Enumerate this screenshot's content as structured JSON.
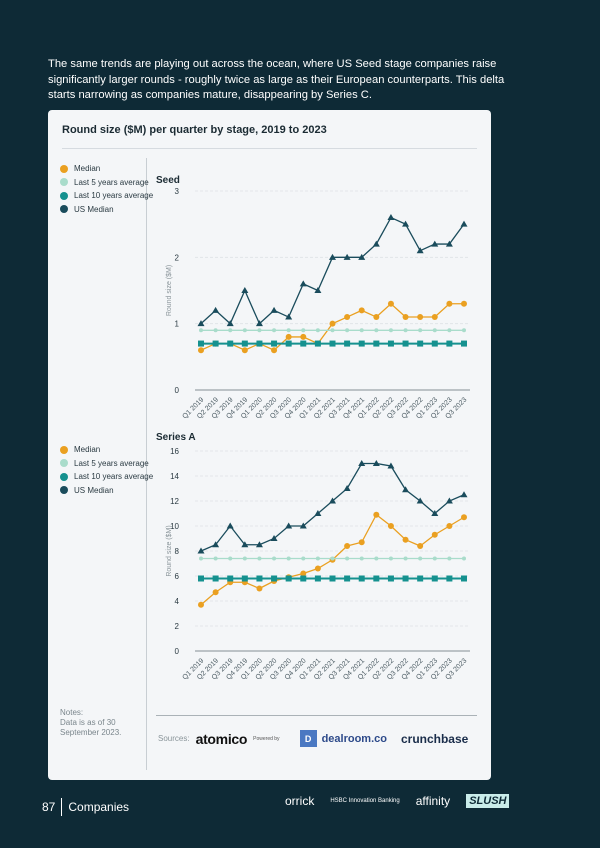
{
  "intro": "The same trends are playing out across the ocean, where US Seed stage companies raise significantly larger rounds - roughly twice as large as their European counterparts. This delta starts narrowing as companies mature, disappearing by Series C.",
  "card_title": "Round size ($M) per quarter by stage, 2019 to 2023",
  "legend": [
    "Median",
    "Last 5 years average",
    "Last 10 years average",
    "US Median"
  ],
  "colors": {
    "Median": "#eaa021",
    "Last 5 years average": "#a9dccb",
    "Last 10 years average": "#15918f",
    "US Median": "#1a4c5c"
  },
  "notes": [
    "Notes:",
    "Data is as of 30",
    "September 2023."
  ],
  "sources": {
    "label": "Sources:",
    "atomico": "atomico",
    "powered_by": "Powered by",
    "dealroom": "dealroom.co",
    "crunchbase": "crunchbase"
  },
  "footer": {
    "page": "87",
    "section": "Companies",
    "logos": [
      "orrick",
      "HSBC Innovation Banking",
      "affinity",
      "SLUSH"
    ]
  },
  "chart_data": [
    {
      "type": "line",
      "title": "Seed",
      "ylabel": "Round size ($M)",
      "ylim": [
        0,
        3
      ],
      "yticks": [
        0,
        1,
        2,
        3
      ],
      "grid": true,
      "legend_position": "left",
      "categories": [
        "Q1 2019",
        "Q2 2019",
        "Q3 2019",
        "Q4 2019",
        "Q1 2020",
        "Q2 2020",
        "Q3 2020",
        "Q4 2020",
        "Q1 2021",
        "Q2 2021",
        "Q3 2021",
        "Q4 2021",
        "Q1 2022",
        "Q2 2022",
        "Q3 2022",
        "Q4 2022",
        "Q1 2023",
        "Q2 2023",
        "Q3 2023"
      ],
      "series": [
        {
          "name": "Median",
          "marker": "circle",
          "values": [
            0.6,
            0.7,
            0.7,
            0.6,
            0.7,
            0.6,
            0.8,
            0.8,
            0.7,
            1.0,
            1.1,
            1.2,
            1.1,
            1.3,
            1.1,
            1.1,
            1.1,
            1.3,
            1.3
          ]
        },
        {
          "name": "Last 5 years average",
          "marker": "diamond",
          "values": [
            0.9,
            0.9,
            0.9,
            0.9,
            0.9,
            0.9,
            0.9,
            0.9,
            0.9,
            0.9,
            0.9,
            0.9,
            0.9,
            0.9,
            0.9,
            0.9,
            0.9,
            0.9,
            0.9
          ]
        },
        {
          "name": "Last 10 years average",
          "marker": "square",
          "values": [
            0.7,
            0.7,
            0.7,
            0.7,
            0.7,
            0.7,
            0.7,
            0.7,
            0.7,
            0.7,
            0.7,
            0.7,
            0.7,
            0.7,
            0.7,
            0.7,
            0.7,
            0.7,
            0.7
          ]
        },
        {
          "name": "US Median",
          "marker": "triangle",
          "values": [
            1.0,
            1.2,
            1.0,
            1.5,
            1.0,
            1.2,
            1.1,
            1.6,
            1.5,
            2.0,
            2.0,
            2.0,
            2.2,
            2.6,
            2.5,
            2.1,
            2.2,
            2.2,
            2.5
          ]
        }
      ]
    },
    {
      "type": "line",
      "title": "Series A",
      "ylabel": "Round size ($M)",
      "ylim": [
        0,
        16
      ],
      "yticks": [
        0,
        2,
        4,
        6,
        8,
        10,
        12,
        14,
        16
      ],
      "grid": true,
      "legend_position": "left",
      "categories": [
        "Q1 2019",
        "Q2 2019",
        "Q3 2019",
        "Q4 2019",
        "Q1 2020",
        "Q2 2020",
        "Q3 2020",
        "Q4 2020",
        "Q1 2021",
        "Q2 2021",
        "Q3 2021",
        "Q4 2021",
        "Q1 2022",
        "Q2 2022",
        "Q3 2022",
        "Q4 2022",
        "Q1 2023",
        "Q2 2023",
        "Q3 2023"
      ],
      "series": [
        {
          "name": "Median",
          "marker": "circle",
          "values": [
            3.7,
            4.7,
            5.5,
            5.5,
            5.0,
            5.6,
            5.9,
            6.2,
            6.6,
            7.3,
            8.4,
            8.7,
            10.9,
            10.0,
            8.9,
            8.4,
            9.3,
            10.0,
            10.7
          ]
        },
        {
          "name": "Last 5 years average",
          "marker": "diamond",
          "values": [
            7.4,
            7.4,
            7.4,
            7.4,
            7.4,
            7.4,
            7.4,
            7.4,
            7.4,
            7.4,
            7.4,
            7.4,
            7.4,
            7.4,
            7.4,
            7.4,
            7.4,
            7.4,
            7.4
          ]
        },
        {
          "name": "Last 10 years average",
          "marker": "square",
          "values": [
            5.8,
            5.8,
            5.8,
            5.8,
            5.8,
            5.8,
            5.8,
            5.8,
            5.8,
            5.8,
            5.8,
            5.8,
            5.8,
            5.8,
            5.8,
            5.8,
            5.8,
            5.8,
            5.8
          ]
        },
        {
          "name": "US Median",
          "marker": "triangle",
          "values": [
            8.0,
            8.5,
            10.0,
            8.5,
            8.5,
            9.0,
            10.0,
            10.0,
            11.0,
            12.0,
            13.0,
            15.0,
            15.0,
            14.8,
            12.9,
            12.0,
            11.0,
            12.0,
            12.5
          ]
        }
      ]
    }
  ]
}
